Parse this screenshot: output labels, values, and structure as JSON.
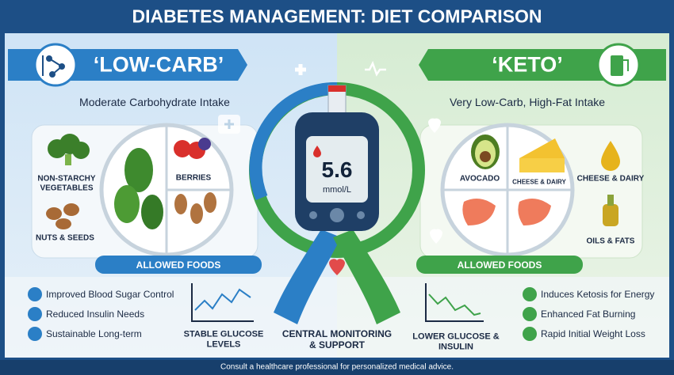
{
  "header": {
    "title": "DIABETES MANAGEMENT: DIET COMPARISON"
  },
  "left": {
    "banner": "‘LOW-CARB’",
    "subtitle": "Moderate Carbohydrate Intake",
    "foods": {
      "side": [
        "NON-STARCHY VEGETABLES",
        "NUTS & SEEDS"
      ],
      "plate": [
        "BERRIES"
      ]
    },
    "allowed": "ALLOWED FOODS",
    "benefits": [
      "Improved Blood Sugar Control",
      "Reduced Insulin Needs",
      "Sustainable Long-term"
    ],
    "chart_label": "STABLE GLUCOSE LEVELS"
  },
  "center": {
    "reading": "5.6",
    "unit": "mmol/L",
    "label": "CENTRAL MONITORING & SUPPORT"
  },
  "right": {
    "banner": "‘KETO’",
    "subtitle": "Very Low-Carb, High-Fat Intake",
    "foods": {
      "plate": [
        "AVOCADO",
        "CHEESE & DAIRY"
      ],
      "side": [
        "CHEESE & DAIRY",
        "OILS & FATS"
      ]
    },
    "allowed": "ALLOWED FOODS",
    "benefits": [
      "Induces Ketosis for Energy",
      "Enhanced Fat Burning",
      "Rapid Initial Weight Loss"
    ],
    "chart_label": "LOWER GLUCOSE & INSULIN"
  },
  "footer": {
    "note": "Consult a healthcare professional for personalized medical advice."
  }
}
